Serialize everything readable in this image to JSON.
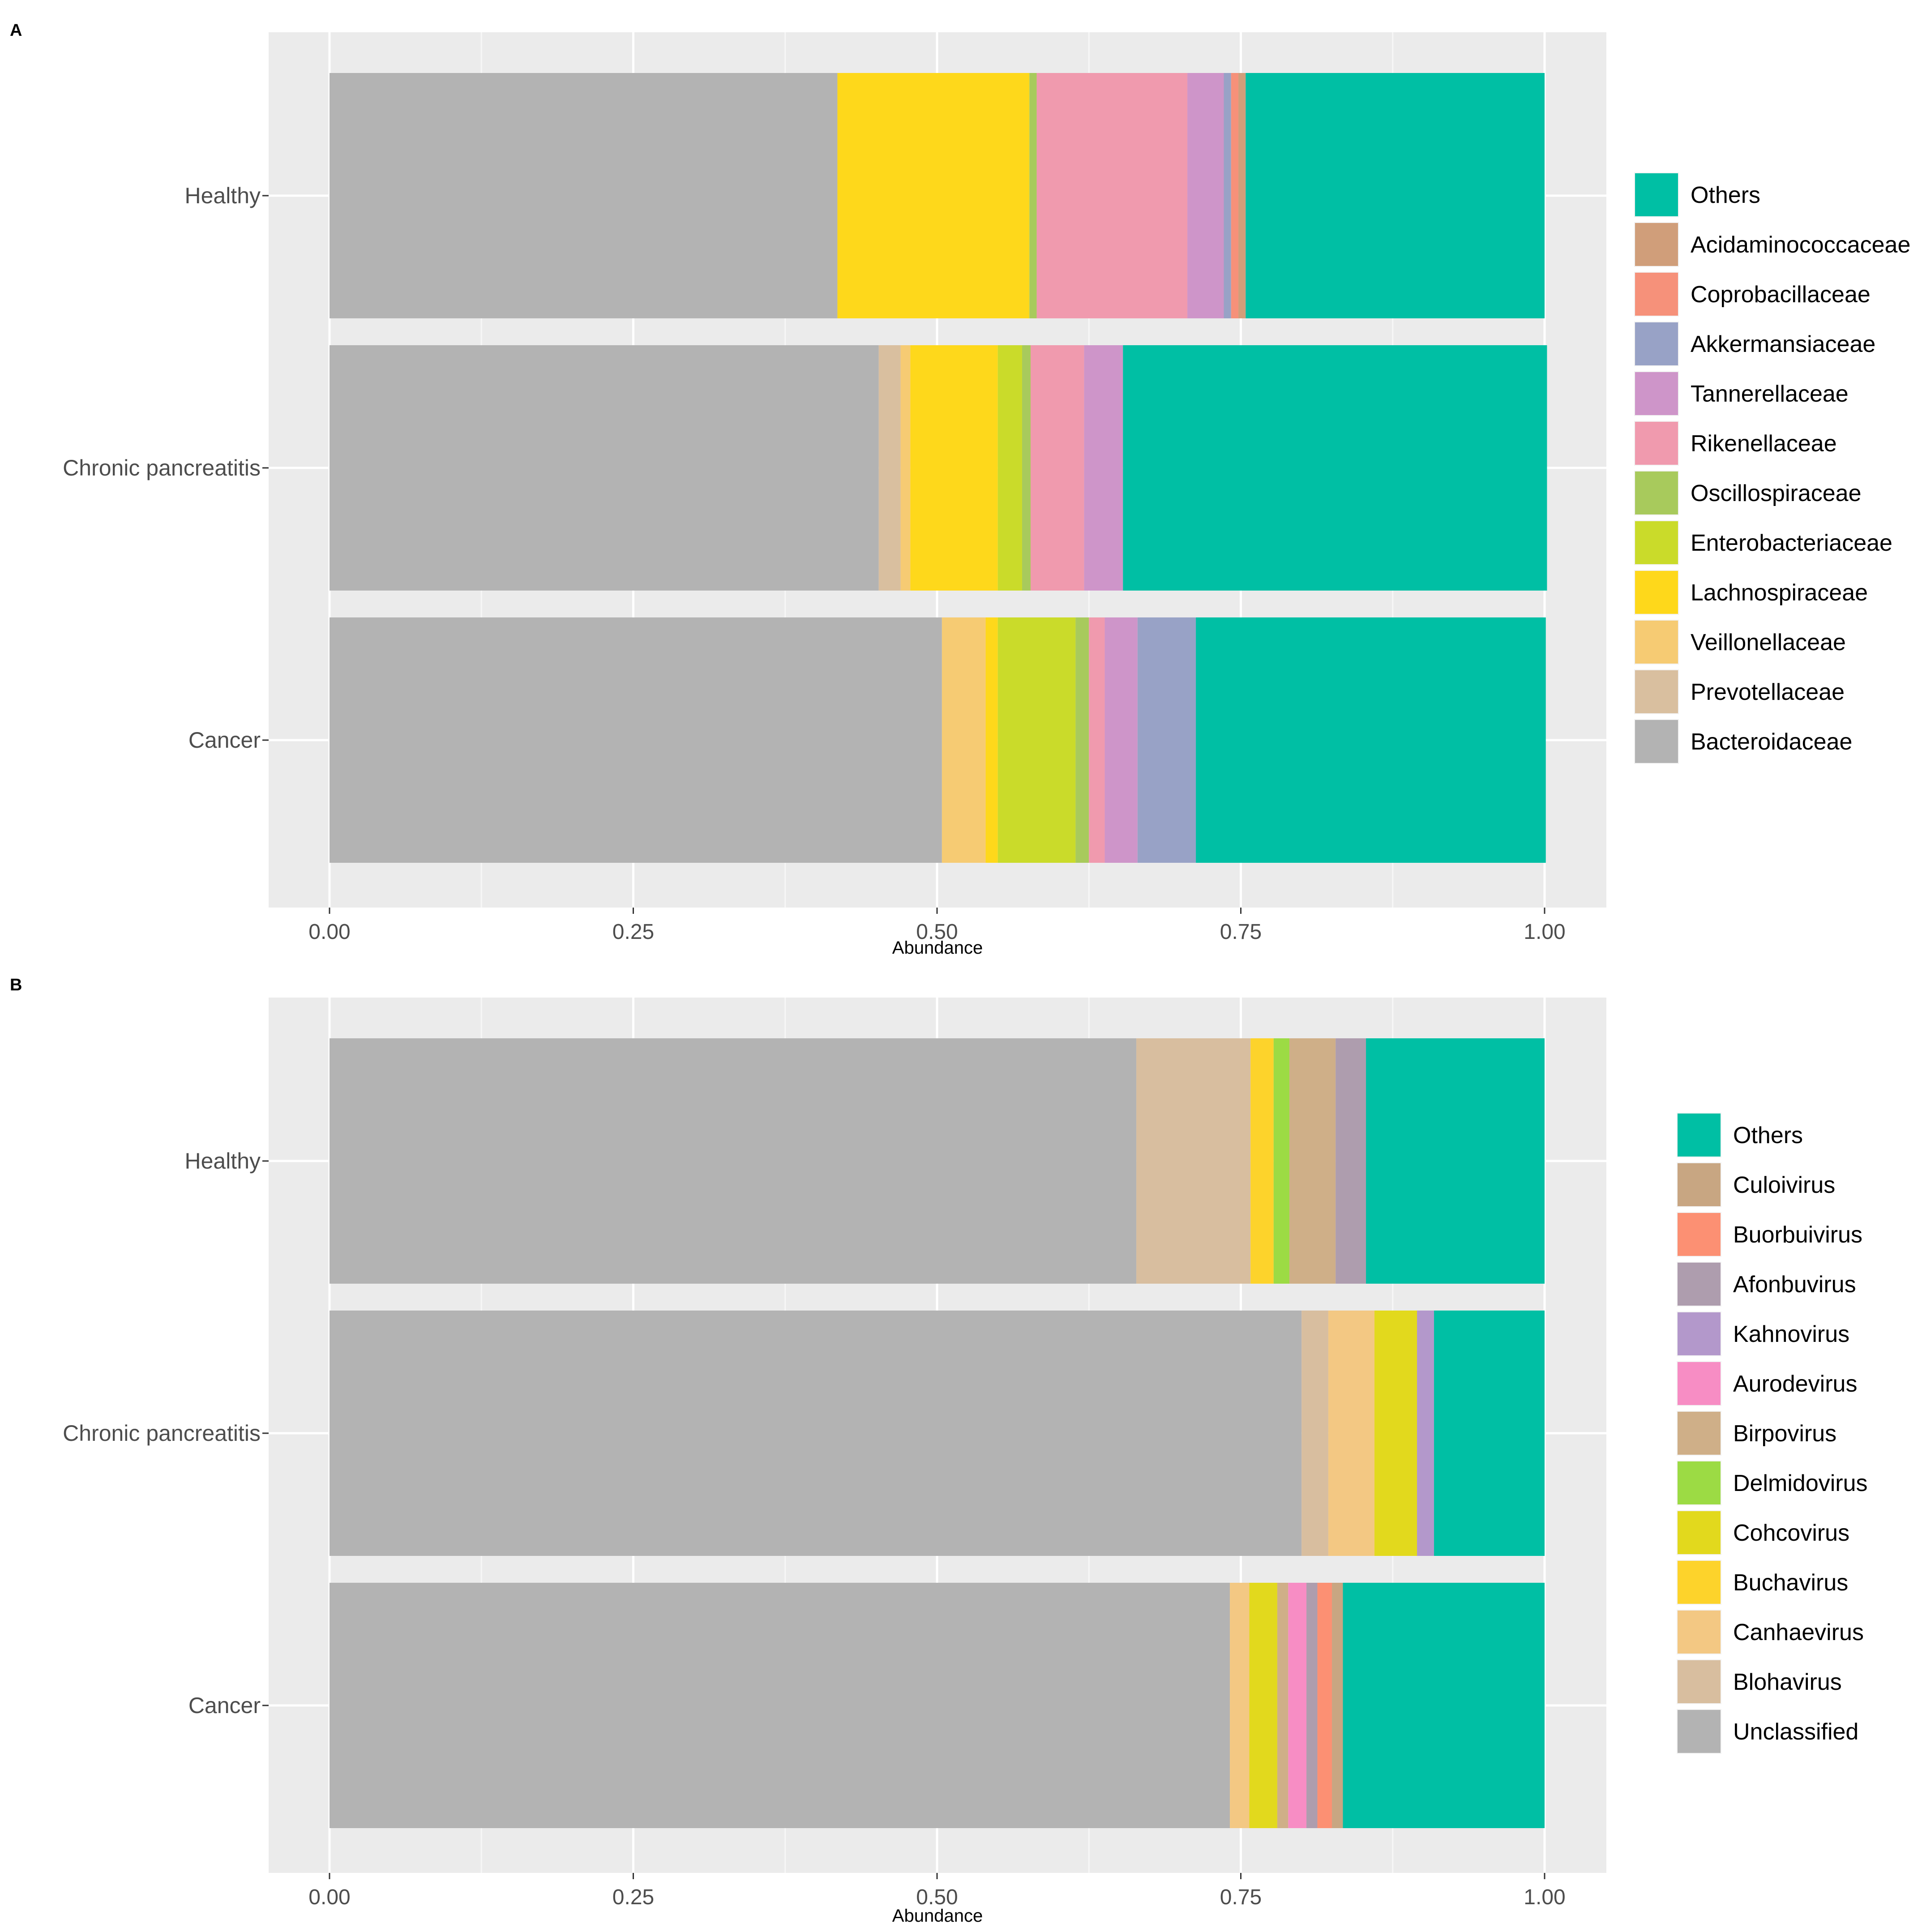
{
  "chart_data": [
    {
      "panel": "A",
      "type": "bar",
      "orientation": "horizontal",
      "stacked": true,
      "xlabel": "Abundance",
      "ylabel": "",
      "xlim": [
        0,
        1
      ],
      "x_ticks": [
        "0.00",
        "0.25",
        "0.50",
        "0.75",
        "1.00"
      ],
      "categories": [
        "Healthy",
        "Chronic pancreatitis",
        "Cancer"
      ],
      "legend_position": "right",
      "series": [
        {
          "name": "Bacteroidaceae",
          "color": "#b3b3b3",
          "values": [
            0.418,
            0.452,
            0.504
          ]
        },
        {
          "name": "Prevotellaceae",
          "color": "#d9bf9f",
          "values": [
            0.0,
            0.018,
            0.0
          ]
        },
        {
          "name": "Veillonellaceae",
          "color": "#f6cb73",
          "values": [
            0.0,
            0.008,
            0.036
          ]
        },
        {
          "name": "Lachnospiraceae",
          "color": "#fed81b",
          "values": [
            0.158,
            0.072,
            0.01
          ]
        },
        {
          "name": "Enterobacteriaceae",
          "color": "#cadb2a",
          "values": [
            0.0,
            0.02,
            0.064
          ]
        },
        {
          "name": "Oscillospiraceae",
          "color": "#a8ca5c",
          "values": [
            0.006,
            0.007,
            0.011
          ]
        },
        {
          "name": "Rikenellaceae",
          "color": "#f09aae",
          "values": [
            0.124,
            0.044,
            0.013
          ]
        },
        {
          "name": "Tannerellaceae",
          "color": "#ce95c9",
          "values": [
            0.03,
            0.032,
            0.027
          ]
        },
        {
          "name": "Akkermansiaceae",
          "color": "#98a2c6",
          "values": [
            0.006,
            0.0,
            0.048
          ]
        },
        {
          "name": "Coprobacillaceae",
          "color": "#f6917a",
          "values": [
            0.006,
            0.0,
            0.0
          ]
        },
        {
          "name": "Acidaminococcaceae",
          "color": "#d09e7a",
          "values": [
            0.006,
            0.0,
            0.0
          ]
        },
        {
          "name": "Others",
          "color": "#00bfa4",
          "values": [
            0.246,
            0.349,
            0.288
          ]
        }
      ]
    },
    {
      "panel": "B",
      "type": "bar",
      "orientation": "horizontal",
      "stacked": true,
      "xlabel": "Abundance",
      "ylabel": "",
      "xlim": [
        0,
        1
      ],
      "x_ticks": [
        "0.00",
        "0.25",
        "0.50",
        "0.75",
        "1.00"
      ],
      "categories": [
        "Healthy",
        "Chronic pancreatitis",
        "Cancer"
      ],
      "legend_position": "right",
      "series": [
        {
          "name": "Unclassified",
          "color": "#b3b3b3",
          "values": [
            0.664,
            0.8,
            0.741
          ]
        },
        {
          "name": "Blohavirus",
          "color": "#d8be9f",
          "values": [
            0.094,
            0.022,
            0.0
          ]
        },
        {
          "name": "Canhaevirus",
          "color": "#f3c883",
          "values": [
            0.0,
            0.038,
            0.016
          ]
        },
        {
          "name": "Buchavirus",
          "color": "#fdd32b",
          "values": [
            0.019,
            0.0,
            0.0
          ]
        },
        {
          "name": "Cohcovirus",
          "color": "#e2d91d",
          "values": [
            0.0,
            0.035,
            0.023
          ]
        },
        {
          "name": "Delmidovirus",
          "color": "#9cdb44",
          "values": [
            0.013,
            0.0,
            0.0
          ]
        },
        {
          "name": "Birpovirus",
          "color": "#cfaf88",
          "values": [
            0.038,
            0.0,
            0.009
          ]
        },
        {
          "name": "Aurodevirus",
          "color": "#f78dc4",
          "values": [
            0.0,
            0.0,
            0.015
          ]
        },
        {
          "name": "Kahnovirus",
          "color": "#b398cb",
          "values": [
            0.0,
            0.014,
            0.0
          ]
        },
        {
          "name": "Afonbuvirus",
          "color": "#ae9dae",
          "values": [
            0.025,
            0.0,
            0.009
          ]
        },
        {
          "name": "Buorbuivirus",
          "color": "#fc9073",
          "values": [
            0.0,
            0.0,
            0.012
          ]
        },
        {
          "name": "Culoivirus",
          "color": "#c8a682",
          "values": [
            0.0,
            0.0,
            0.009
          ]
        },
        {
          "name": "Others",
          "color": "#00bfa4",
          "values": [
            0.147,
            0.091,
            0.166
          ]
        }
      ]
    }
  ]
}
